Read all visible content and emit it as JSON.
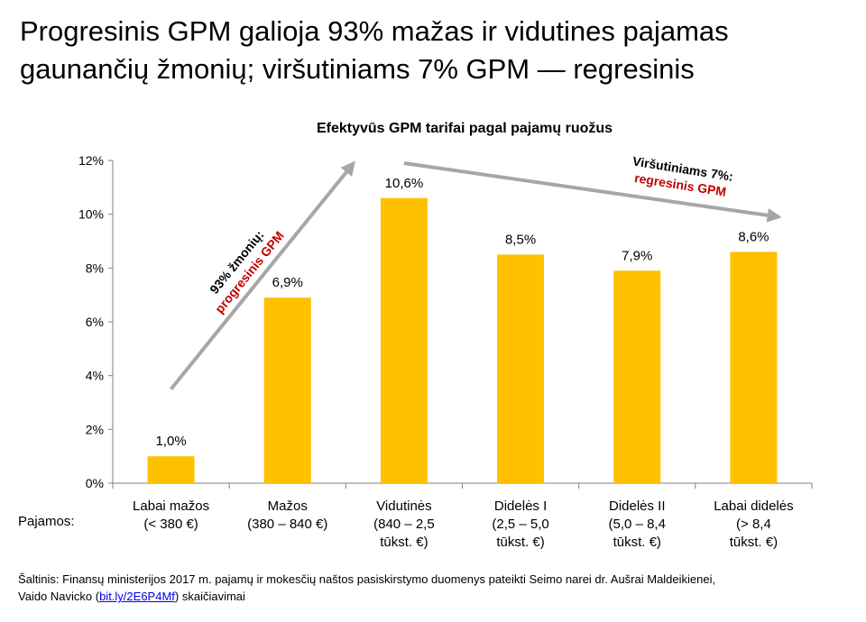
{
  "headline": {
    "line1": "Progresinis GPM galioja 93% mažas ir vidutines pajamas",
    "line2": "gaunančių žmonių; viršutiniams 7% GPM — regresinis"
  },
  "chart_data": {
    "type": "bar",
    "title": "Efektyvūs GPM tarifai pagal pajamų ruožus",
    "categories": [
      [
        "Labai mažos",
        "(< 380 €)"
      ],
      [
        "Mažos",
        "(380 – 840 €)"
      ],
      [
        "Vidutinės",
        "(840 – 2,5",
        "tūkst. €)"
      ],
      [
        "Didelės I",
        "(2,5 – 5,0",
        "tūkst. €)"
      ],
      [
        "Didelės II",
        "(5,0 – 8,4",
        "tūkst. €)"
      ],
      [
        "Labai didelės",
        "(> 8,4",
        "tūkst. €)"
      ]
    ],
    "values": [
      1.0,
      6.9,
      10.6,
      8.5,
      7.9,
      8.6
    ],
    "value_labels": [
      "1,0%",
      "6,9%",
      "10,6%",
      "8,5%",
      "7,9%",
      "8,6%"
    ],
    "ylim": [
      0,
      12
    ],
    "yticks": [
      0,
      2,
      4,
      6,
      8,
      10,
      12
    ],
    "ytick_labels": [
      "0%",
      "2%",
      "4%",
      "6%",
      "8%",
      "10%",
      "12%"
    ],
    "bar_color": "#ffc000",
    "arrow_color": "#a6a6a6",
    "annotations": [
      {
        "line1": "93% žmonių:",
        "line2": "progresinis GPM"
      },
      {
        "line1": "Viršutiniams 7%:",
        "line2": "regresinis GPM"
      }
    ],
    "annotation_highlight_color": "#c00000"
  },
  "pajamos_label": "Pajamos:",
  "source": {
    "line1": "Šaltinis: Finansų ministerijos 2017 m. pajamų ir mokesčių naštos pasiskirstymo duomenys pateikti Seimo narei dr. Aušrai Maldeikienei,",
    "line2_prefix": "Vaido Navicko (",
    "link": "bit.ly/2E6P4Mf",
    "line2_suffix": ") skaičiavimai"
  }
}
